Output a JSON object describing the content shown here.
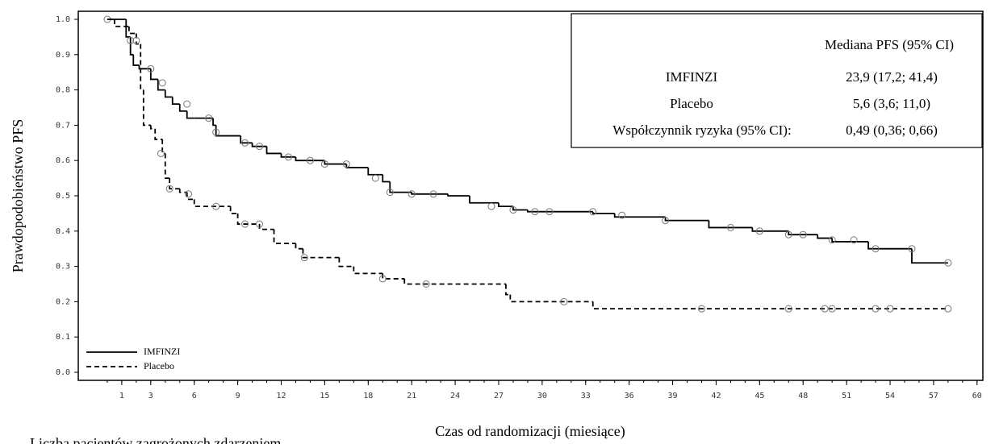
{
  "chart_data": {
    "type": "km-step",
    "y_label": "Prawdopodobieństwo PFS",
    "x_label": "Czas od randomizacji (miesiące)",
    "footer_note": "Liczba pacjentów zagrożonych zdarzeniem",
    "xlim": [
      -2,
      60.4
    ],
    "ylim": [
      0,
      1.0
    ],
    "xticks": [
      1,
      3,
      6,
      9,
      12,
      15,
      18,
      21,
      24,
      27,
      30,
      33,
      36,
      39,
      42,
      45,
      48,
      51,
      54,
      57,
      60
    ],
    "yticks": [
      {
        "value": 0,
        "label": "0.0"
      },
      0.1,
      0.2,
      0.3,
      0.4,
      0.5,
      0.6,
      0.7,
      0.8,
      0.9,
      {
        "value": 1,
        "label": "1.0"
      }
    ],
    "series": [
      {
        "name": "IMFINZI",
        "color": "#000000",
        "line_style": "solid",
        "x": [
          0,
          1.3,
          1.6,
          1.8,
          2.2,
          3,
          3.5,
          4,
          4.5,
          5,
          5.5,
          6,
          7.3,
          7.5,
          9.2,
          10,
          11,
          12,
          13,
          15,
          16.5,
          18,
          19,
          19.5,
          21,
          23.5,
          25,
          27,
          28,
          29,
          33.5,
          35,
          38.5,
          41.5,
          44.5,
          47,
          49,
          50,
          52.5,
          55.5,
          58
        ],
        "values": [
          1.0,
          0.95,
          0.9,
          0.87,
          0.86,
          0.83,
          0.8,
          0.78,
          0.76,
          0.74,
          0.72,
          0.72,
          0.7,
          0.67,
          0.65,
          0.64,
          0.62,
          0.61,
          0.6,
          0.59,
          0.58,
          0.56,
          0.54,
          0.51,
          0.505,
          0.5,
          0.48,
          0.47,
          0.46,
          0.455,
          0.45,
          0.44,
          0.43,
          0.41,
          0.4,
          0.39,
          0.38,
          0.37,
          0.35,
          0.31,
          0.31
        ],
        "censor_x": [
          0,
          1.6,
          3,
          3.8,
          5.5,
          7,
          7.5,
          9.5,
          10.5,
          12.5,
          14,
          15,
          16.5,
          18.5,
          19.5,
          21,
          22.5,
          26.5,
          28,
          29.5,
          30.5,
          33.5,
          35.5,
          38.5,
          43,
          45,
          47,
          48,
          50,
          51.5,
          53,
          55.5,
          58
        ],
        "censor_values": [
          1.0,
          0.94,
          0.86,
          0.82,
          0.76,
          0.72,
          0.68,
          0.65,
          0.64,
          0.61,
          0.6,
          0.59,
          0.59,
          0.55,
          0.51,
          0.505,
          0.505,
          0.47,
          0.46,
          0.455,
          0.455,
          0.455,
          0.445,
          0.43,
          0.41,
          0.4,
          0.39,
          0.39,
          0.375,
          0.375,
          0.35,
          0.35,
          0.31
        ]
      },
      {
        "name": "Placebo",
        "color": "#000000",
        "line_style": "dashed",
        "x": [
          0,
          0.5,
          1.5,
          2,
          2.3,
          2.5,
          3,
          3.3,
          3.8,
          4,
          4.3,
          5,
          5.5,
          6,
          8.5,
          9,
          10.5,
          11.5,
          13,
          13.5,
          16,
          17,
          19,
          20.5,
          27.5,
          27.8,
          33.5,
          58
        ],
        "values": [
          1.0,
          0.98,
          0.96,
          0.93,
          0.8,
          0.7,
          0.69,
          0.66,
          0.62,
          0.55,
          0.52,
          0.51,
          0.49,
          0.47,
          0.45,
          0.42,
          0.405,
          0.365,
          0.35,
          0.325,
          0.3,
          0.28,
          0.265,
          0.25,
          0.22,
          0.2,
          0.18,
          0.18
        ],
        "censor_x": [
          2,
          3.7,
          4.3,
          5.6,
          7.5,
          9.5,
          10.5,
          13.6,
          19,
          22,
          31.5,
          41,
          47,
          49.5,
          50,
          53,
          54,
          58
        ],
        "censor_values": [
          0.94,
          0.62,
          0.52,
          0.505,
          0.47,
          0.42,
          0.42,
          0.325,
          0.265,
          0.25,
          0.2,
          0.18,
          0.18,
          0.18,
          0.18,
          0.18,
          0.18,
          0.18
        ]
      }
    ],
    "stats_table": {
      "header": "Mediana PFS (95% CI)",
      "rows": [
        [
          "IMFINZI",
          "23,9 (17,2; 41,4)"
        ],
        [
          "Placebo",
          "5,6 (3,6; 11,0)"
        ],
        [
          "Współczynnik ryzyka (95% CI):",
          "0,49 (0,36; 0,66)"
        ]
      ]
    }
  }
}
